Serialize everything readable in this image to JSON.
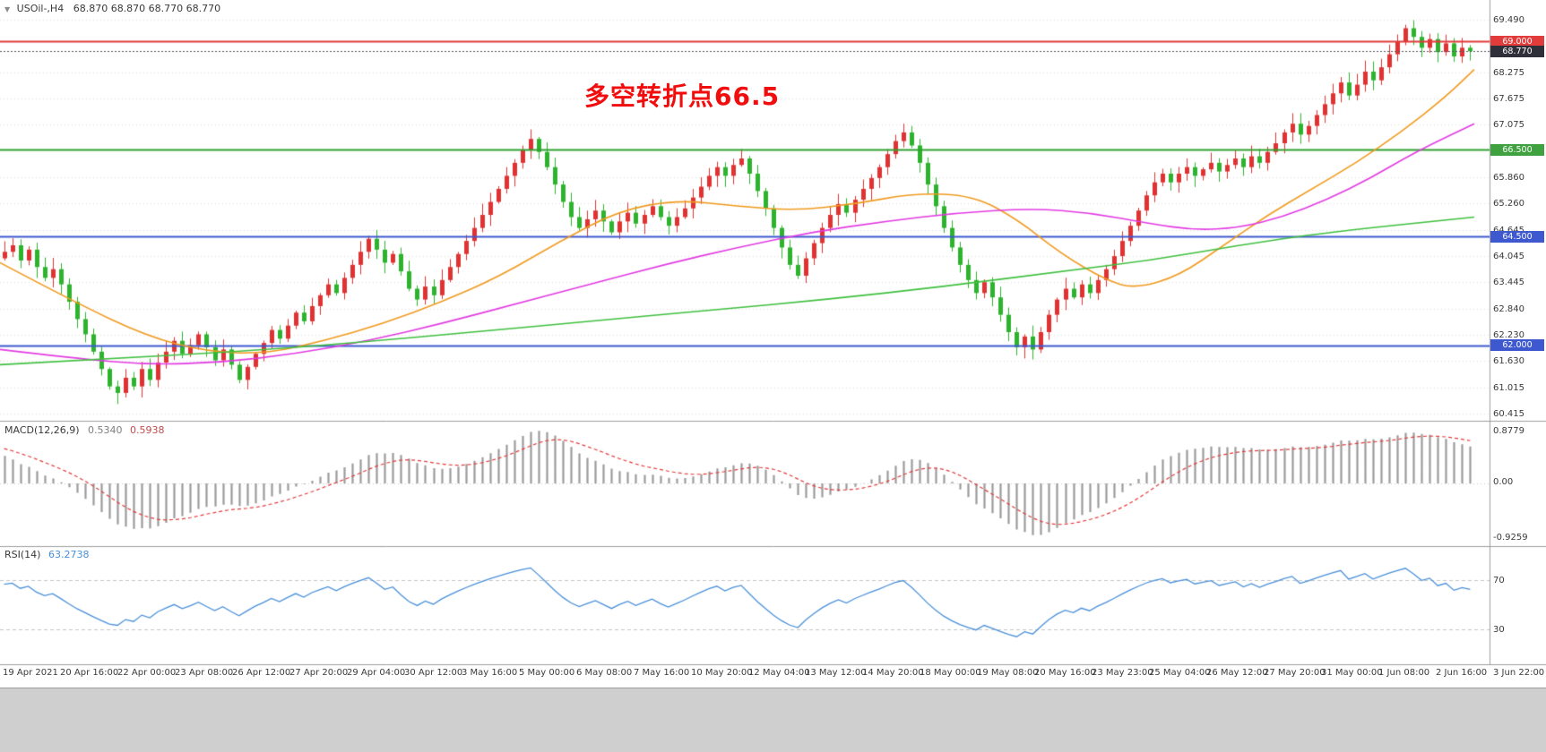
{
  "header": {
    "symbol_period": "USOil-,H4",
    "ohlc_text": "68.870 68.870 68.770 68.770"
  },
  "annotation": {
    "text": "多空转折点66.5",
    "color": "#f10d0d"
  },
  "chart_data": {
    "type": "candlestick",
    "symbol": "USOil",
    "timeframe": "H4",
    "first_open": 64.0,
    "closes": [
      64.15,
      64.3,
      63.95,
      64.2,
      63.8,
      63.55,
      63.75,
      63.4,
      63.0,
      62.6,
      62.25,
      61.85,
      61.45,
      61.05,
      60.9,
      61.25,
      61.05,
      61.45,
      61.2,
      61.6,
      61.85,
      62.1,
      61.8,
      62.0,
      62.25,
      61.95,
      61.65,
      61.9,
      61.55,
      61.2,
      61.5,
      61.8,
      62.05,
      62.35,
      62.15,
      62.45,
      62.75,
      62.55,
      62.9,
      63.15,
      63.4,
      63.2,
      63.55,
      63.85,
      64.15,
      64.45,
      64.2,
      63.9,
      64.1,
      63.7,
      63.3,
      63.05,
      63.35,
      63.15,
      63.5,
      63.8,
      64.1,
      64.4,
      64.7,
      65.0,
      65.3,
      65.6,
      65.9,
      66.2,
      66.5,
      66.75,
      66.45,
      66.1,
      65.7,
      65.3,
      64.95,
      64.7,
      64.9,
      65.1,
      64.85,
      64.6,
      64.85,
      65.05,
      64.8,
      65.0,
      65.2,
      64.95,
      64.75,
      64.95,
      65.15,
      65.4,
      65.65,
      65.9,
      66.1,
      65.9,
      66.15,
      66.3,
      65.95,
      65.55,
      65.15,
      64.7,
      64.25,
      63.85,
      63.6,
      64.0,
      64.35,
      64.7,
      65.0,
      65.25,
      65.05,
      65.35,
      65.6,
      65.85,
      66.1,
      66.4,
      66.7,
      66.9,
      66.6,
      66.2,
      65.7,
      65.2,
      64.7,
      64.25,
      63.85,
      63.5,
      63.2,
      63.45,
      63.1,
      62.7,
      62.3,
      61.95,
      62.2,
      61.9,
      62.3,
      62.7,
      63.05,
      63.3,
      63.1,
      63.4,
      63.2,
      63.5,
      63.75,
      64.05,
      64.4,
      64.75,
      65.1,
      65.45,
      65.75,
      65.95,
      65.75,
      65.95,
      66.1,
      65.9,
      66.05,
      66.2,
      66.0,
      66.15,
      66.3,
      66.1,
      66.35,
      66.2,
      66.45,
      66.65,
      66.9,
      67.1,
      66.85,
      67.05,
      67.3,
      67.55,
      67.8,
      68.05,
      67.75,
      68.0,
      68.3,
      68.1,
      68.4,
      68.7,
      69.0,
      69.3,
      69.1,
      68.85,
      69.05,
      68.75,
      68.95,
      68.65,
      68.85,
      68.77
    ],
    "x_labels": [
      "19 Apr 2021",
      "20 Apr 16:00",
      "22 Apr 00:00",
      "23 Apr 08:00",
      "26 Apr 12:00",
      "27 Apr 20:00",
      "29 Apr 04:00",
      "30 Apr 12:00",
      "3 May 16:00",
      "5 May 00:00",
      "6 May 08:00",
      "7 May 16:00",
      "10 May 20:00",
      "12 May 04:00",
      "13 May 12:00",
      "14 May 20:00",
      "18 May 00:00",
      "19 May 08:00",
      "20 May 16:00",
      "23 May 23:00",
      "25 May 04:00",
      "26 May 12:00",
      "27 May 20:00",
      "31 May 00:00",
      "1 Jun 08:00",
      "2 Jun 16:00",
      "3 Jun 22:00"
    ],
    "y_axis": {
      "min": 60.3,
      "max": 69.62,
      "ticks": [
        "69.490",
        "68.275",
        "67.675",
        "67.075",
        "65.860",
        "65.260",
        "64.645",
        "64.045",
        "63.445",
        "62.840",
        "62.230",
        "61.630",
        "61.015",
        "60.415"
      ],
      "badges": [
        {
          "text": "69.000",
          "color": "#e13b3b"
        },
        {
          "text": "68.770",
          "color": "#2f2f3a"
        },
        {
          "text": "66.500",
          "color": "#3fa13f"
        },
        {
          "text": "64.500",
          "color": "#3e59cf"
        },
        {
          "text": "62.000",
          "color": "#3e59cf"
        }
      ]
    },
    "levels": [
      {
        "price": 69.0,
        "color": "#e13b3b",
        "width": 2,
        "dash": false
      },
      {
        "price": 68.77,
        "color": "#55555f",
        "width": 1,
        "dash": true
      },
      {
        "price": 66.5,
        "color": "#2fa02f",
        "width": 2,
        "dash": false
      },
      {
        "price": 64.5,
        "color": "#3e59cf",
        "width": 2,
        "dash": false
      },
      {
        "price": 62.0,
        "color": "#3e59cf",
        "width": 2,
        "dash": false
      }
    ],
    "candle_colors": {
      "up": "#e03232",
      "down": "#2db32d"
    },
    "moving_averages": [
      {
        "name": "ma-fast-orange",
        "color": "#f09a1f",
        "points": [
          [
            0,
            63.9
          ],
          [
            0.05,
            63.0
          ],
          [
            0.1,
            62.2
          ],
          [
            0.14,
            61.85
          ],
          [
            0.18,
            61.8
          ],
          [
            0.22,
            62.1
          ],
          [
            0.26,
            62.5
          ],
          [
            0.3,
            63.0
          ],
          [
            0.34,
            63.6
          ],
          [
            0.38,
            64.4
          ],
          [
            0.42,
            65.1
          ],
          [
            0.46,
            65.35
          ],
          [
            0.5,
            65.2
          ],
          [
            0.54,
            65.1
          ],
          [
            0.58,
            65.25
          ],
          [
            0.62,
            65.5
          ],
          [
            0.66,
            65.45
          ],
          [
            0.69,
            64.9
          ],
          [
            0.72,
            64.1
          ],
          [
            0.75,
            63.5
          ],
          [
            0.77,
            63.3
          ],
          [
            0.8,
            63.6
          ],
          [
            0.83,
            64.3
          ],
          [
            0.86,
            65.0
          ],
          [
            0.89,
            65.6
          ],
          [
            0.92,
            66.2
          ],
          [
            0.95,
            66.9
          ],
          [
            0.98,
            67.7
          ],
          [
            1,
            68.35
          ]
        ]
      },
      {
        "name": "ma-mid-magenta",
        "color": "#e23be2",
        "points": [
          [
            0,
            61.9
          ],
          [
            0.05,
            61.7
          ],
          [
            0.1,
            61.55
          ],
          [
            0.15,
            61.6
          ],
          [
            0.2,
            61.8
          ],
          [
            0.25,
            62.1
          ],
          [
            0.3,
            62.5
          ],
          [
            0.35,
            62.95
          ],
          [
            0.4,
            63.4
          ],
          [
            0.45,
            63.85
          ],
          [
            0.5,
            64.25
          ],
          [
            0.55,
            64.6
          ],
          [
            0.6,
            64.85
          ],
          [
            0.65,
            65.05
          ],
          [
            0.7,
            65.15
          ],
          [
            0.74,
            65.05
          ],
          [
            0.78,
            64.8
          ],
          [
            0.81,
            64.65
          ],
          [
            0.84,
            64.7
          ],
          [
            0.87,
            64.95
          ],
          [
            0.9,
            65.35
          ],
          [
            0.93,
            65.85
          ],
          [
            0.96,
            66.45
          ],
          [
            1,
            67.1
          ]
        ]
      },
      {
        "name": "ma-slow-green",
        "color": "#3fbf3f",
        "points": [
          [
            0,
            61.55
          ],
          [
            0.08,
            61.7
          ],
          [
            0.16,
            61.85
          ],
          [
            0.24,
            62.05
          ],
          [
            0.32,
            62.3
          ],
          [
            0.4,
            62.55
          ],
          [
            0.48,
            62.8
          ],
          [
            0.56,
            63.05
          ],
          [
            0.64,
            63.35
          ],
          [
            0.72,
            63.7
          ],
          [
            0.78,
            63.95
          ],
          [
            0.84,
            64.3
          ],
          [
            0.9,
            64.6
          ],
          [
            1,
            64.95
          ]
        ]
      }
    ],
    "indicators": {
      "macd": {
        "label": "MACD(12,26,9)",
        "value_main": "0.5340",
        "value_signal": "0.5938",
        "axis": {
          "max": "0.8779",
          "zero": "0.00",
          "min": "-0.9259"
        },
        "histogram_color": "#9b9b9b",
        "signal_color": "#e13b3b"
      },
      "rsi": {
        "label": "RSI(14)",
        "value": "63.2738",
        "levels": [
          "70",
          "30"
        ],
        "line_color": "#4a90d9",
        "level_color": "#c4c4c4"
      }
    }
  }
}
